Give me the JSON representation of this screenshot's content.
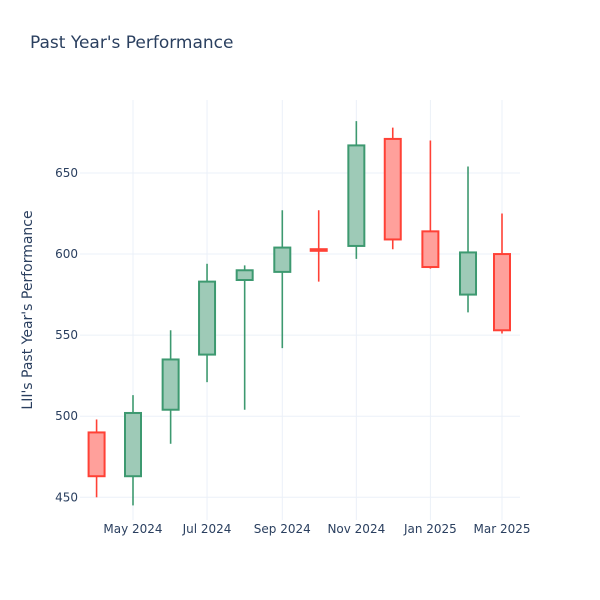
{
  "chart_data": {
    "type": "candlestick",
    "title": "Past Year's Performance",
    "xlabel": "",
    "ylabel": "LII's Past Year's Performance",
    "ylim": [
      436,
      695
    ],
    "grid": true,
    "x_tick_labels": [
      "May 2024",
      "Jul 2024",
      "Sep 2024",
      "Nov 2024",
      "Jan 2025",
      "Mar 2025"
    ],
    "x_tick_dates": [
      "2024-05-01",
      "2024-07-01",
      "2024-09-01",
      "2024-11-01",
      "2025-01-01",
      "2025-03-01"
    ],
    "y_ticks": [
      450,
      500,
      550,
      600,
      650
    ],
    "colors": {
      "increasing_line": "#3d9970",
      "increasing_fill": "#9ecab7",
      "decreasing_line": "#ff4136",
      "decreasing_fill": "#ffa09b",
      "grid": "#ebf0f8",
      "text": "#2a3f5f"
    },
    "candles": [
      {
        "date": "2024-04-01",
        "open": 490,
        "high": 498,
        "low": 450,
        "close": 463
      },
      {
        "date": "2024-05-01",
        "open": 463,
        "high": 513,
        "low": 445,
        "close": 502
      },
      {
        "date": "2024-06-01",
        "open": 504,
        "high": 553,
        "low": 483,
        "close": 535
      },
      {
        "date": "2024-07-01",
        "open": 538,
        "high": 594,
        "low": 521,
        "close": 583
      },
      {
        "date": "2024-08-01",
        "open": 584,
        "high": 593,
        "low": 504,
        "close": 590
      },
      {
        "date": "2024-09-01",
        "open": 589,
        "high": 627,
        "low": 542,
        "close": 604
      },
      {
        "date": "2024-10-01",
        "open": 603,
        "high": 627,
        "low": 583,
        "close": 602
      },
      {
        "date": "2024-11-01",
        "open": 605,
        "high": 682,
        "low": 597,
        "close": 667
      },
      {
        "date": "2024-12-01",
        "open": 671,
        "high": 678,
        "low": 603,
        "close": 609
      },
      {
        "date": "2025-01-01",
        "open": 614,
        "high": 670,
        "low": 591,
        "close": 592
      },
      {
        "date": "2025-02-01",
        "open": 575,
        "high": 654,
        "low": 564,
        "close": 601
      },
      {
        "date": "2025-03-01",
        "open": 600,
        "high": 625,
        "low": 551,
        "close": 553
      }
    ]
  }
}
